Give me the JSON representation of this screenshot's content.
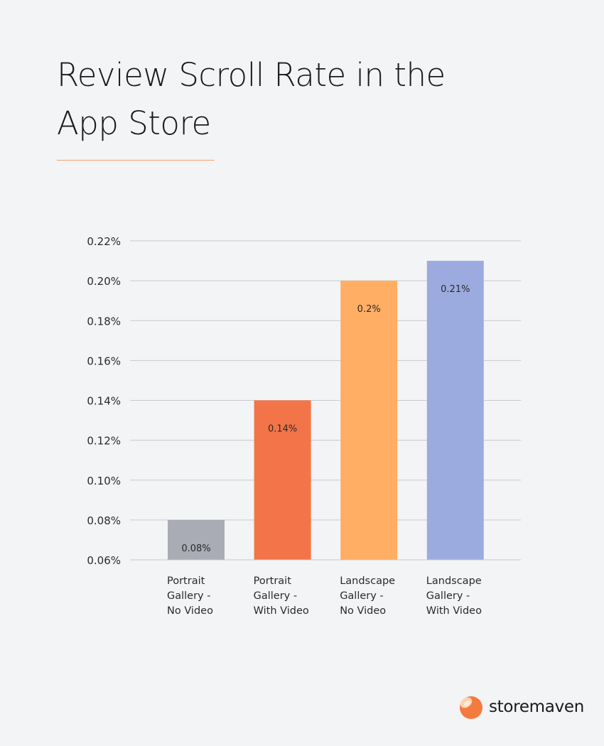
{
  "page": {
    "title_line1": "Review Scroll Rate in the",
    "title_line2": "App Store",
    "accent_color": "#f0a46c"
  },
  "brand": {
    "name": "storemaven",
    "logo_icon": "storemaven-logo-icon",
    "logo_colors": [
      "#f47b3f",
      "#ffd2b0"
    ]
  },
  "chart_data": {
    "type": "bar",
    "title": "Review Scroll Rate in the App Store",
    "categories": [
      [
        "Portrait",
        "Gallery -",
        "No Video"
      ],
      [
        "Portrait",
        "Gallery -",
        "With Video"
      ],
      [
        "Landscape",
        "Gallery -",
        "No Video"
      ],
      [
        "Landscape",
        "Gallery -",
        "With Video"
      ]
    ],
    "values": [
      0.08,
      0.14,
      0.2,
      0.21
    ],
    "value_labels": [
      "0.08%",
      "0.14%",
      "0.2%",
      "0.21%"
    ],
    "colors": [
      "#a9acb5",
      "#f37448",
      "#ffae63",
      "#9cabdf"
    ],
    "y_ticks": [
      0.06,
      0.08,
      0.1,
      0.12,
      0.14,
      0.16,
      0.18,
      0.2,
      0.22
    ],
    "y_tick_labels": [
      "0.06%",
      "0.08%",
      "0.10%",
      "0.12%",
      "0.14%",
      "0.16%",
      "0.18%",
      "0.20%",
      "0.22%"
    ],
    "ylim": [
      0.06,
      0.22
    ],
    "xlabel": "",
    "ylabel": "",
    "grid": true,
    "legend": "none"
  }
}
